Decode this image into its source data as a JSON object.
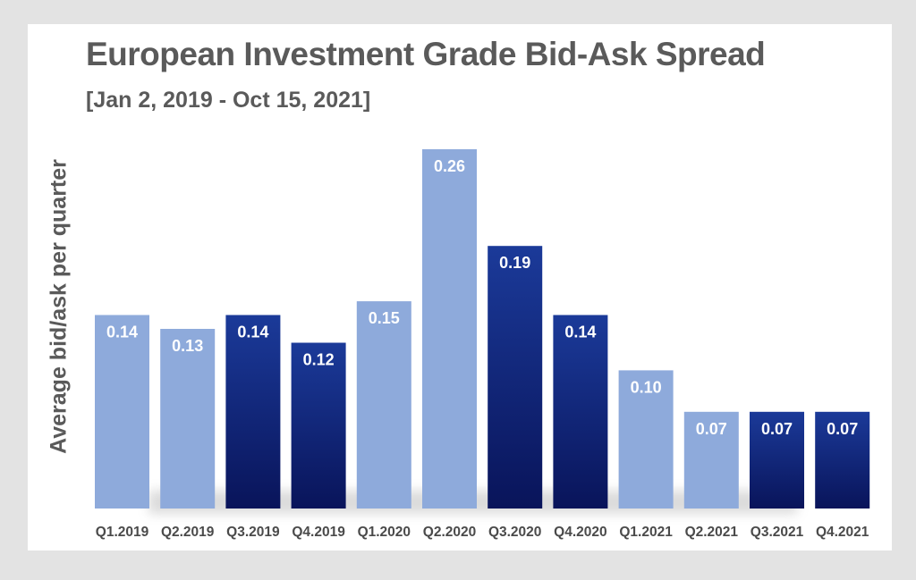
{
  "chart_data": {
    "type": "bar",
    "title": "European Investment Grade Bid-Ask Spread",
    "subtitle": "[Jan 2, 2019 - Oct 15, 2021]",
    "xlabel": "",
    "ylabel": "Average bid/ask per quarter",
    "categories": [
      "Q1.2019",
      "Q2.2019",
      "Q3.2019",
      "Q4.2019",
      "Q1.2020",
      "Q2.2020",
      "Q3.2020",
      "Q4.2020",
      "Q1.2021",
      "Q2.2021",
      "Q3.2021",
      "Q4.2021"
    ],
    "values": [
      0.14,
      0.13,
      0.14,
      0.12,
      0.15,
      0.26,
      0.19,
      0.14,
      0.1,
      0.07,
      0.07,
      0.07
    ],
    "value_labels": [
      "0.14",
      "0.13",
      "0.14",
      "0.12",
      "0.15",
      "0.26",
      "0.19",
      "0.14",
      "0.10",
      "0.07",
      "0.07",
      "0.07"
    ],
    "bar_styles": [
      "light",
      "light",
      "dark",
      "dark",
      "light",
      "light",
      "dark",
      "dark",
      "light",
      "light",
      "dark",
      "dark"
    ],
    "colors": {
      "light": "#8eaadb",
      "dark_top": "#1b3a99",
      "dark_bottom": "#09145a"
    },
    "ylim": [
      0,
      0.26
    ],
    "grid": false,
    "legend": "none"
  }
}
